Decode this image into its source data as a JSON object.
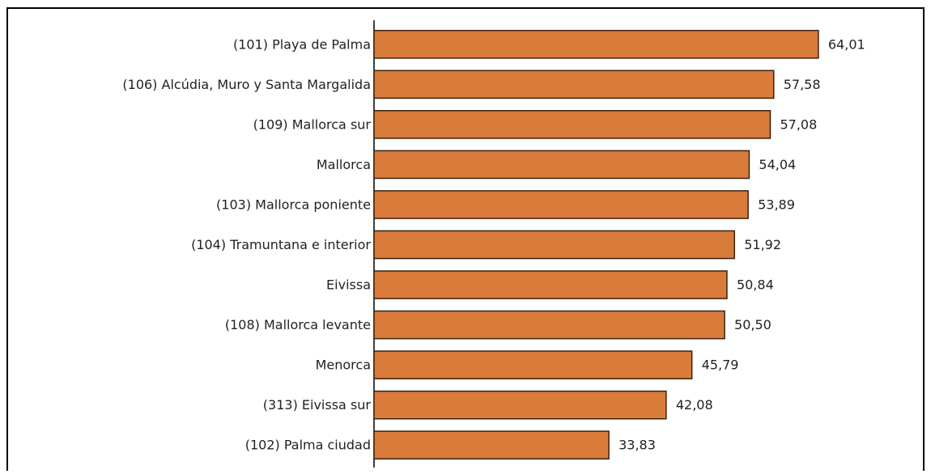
{
  "chart_data": {
    "type": "bar",
    "orientation": "horizontal",
    "categories": [
      "(101) Playa de Palma",
      "(106) Alcúdia, Muro y Santa Margalida",
      "(109) Mallorca sur",
      "Mallorca",
      "(103) Mallorca poniente",
      "(104) Tramuntana e interior",
      "Eivissa",
      "(108) Mallorca levante",
      "Menorca",
      "(313) Eivissa sur",
      "(102) Palma ciudad"
    ],
    "values": [
      64.01,
      57.58,
      57.08,
      54.04,
      53.89,
      51.92,
      50.84,
      50.5,
      45.79,
      42.08,
      33.83
    ],
    "value_labels": [
      "64,01",
      "57,58",
      "57,08",
      "54,04",
      "53,89",
      "51,92",
      "50,84",
      "50,50",
      "45,79",
      "42,08",
      "33,83"
    ],
    "color": "#d97b3a",
    "xlim": [
      0,
      80
    ]
  }
}
